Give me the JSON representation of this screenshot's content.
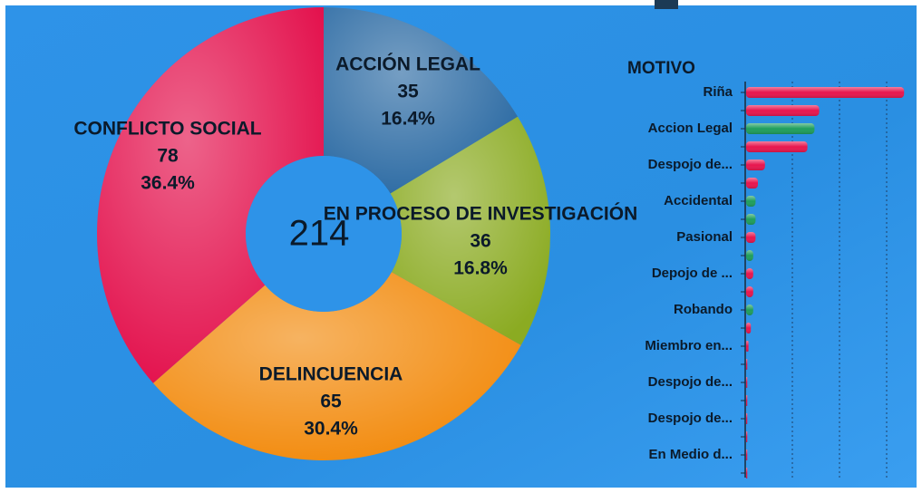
{
  "chart_data": [
    {
      "type": "donut",
      "categories": [
        "ACCIÓN LEGAL",
        "EN PROCESO DE INVESTIGACIÓN",
        "DELINCUENCIA",
        "CONFLICTO SOCIAL"
      ],
      "values": [
        35,
        36,
        65,
        78
      ],
      "percent_labels": [
        "16.4%",
        "16.8%",
        "30.4%",
        "36.4%"
      ],
      "colors": [
        "#2b6aa3",
        "#8bab22",
        "#f28a0c",
        "#e3104c"
      ],
      "total": 214
    },
    {
      "type": "hbar",
      "title": "MOTIVO",
      "categories": [
        "Riña",
        null,
        "Accion Legal",
        null,
        "Despojo de...",
        null,
        "Accidental",
        null,
        "Pasional",
        null,
        "Depojo de ...",
        null,
        "Robando",
        null,
        "Miembro en...",
        null,
        "Despojo de...",
        null,
        "Despojo de...",
        null,
        "En Medio d...",
        null
      ],
      "values": [
        67,
        31,
        29,
        26,
        8,
        5,
        4,
        4,
        4,
        3,
        3,
        3,
        3,
        2,
        1,
        0.5,
        0.5,
        0.5,
        0.5,
        0.5,
        0.5,
        0.5
      ],
      "colors": [
        "#e8164e",
        "#e8164e",
        "#1f9e5c",
        "#e8164e",
        "#e8164e",
        "#e8164e",
        "#1f9e5c",
        "#1f9e5c",
        "#e8164e",
        "#1f9e5c",
        "#e8164e",
        "#e8164e",
        "#1f9e5c",
        "#e8164e",
        "#e8164e",
        "#e8164e",
        "#e8164e",
        "#e8164e",
        "#e8164e",
        "#e8164e",
        "#e8164e",
        "#e8164e"
      ],
      "xlim": [
        0,
        70
      ],
      "xticks": [
        0,
        20,
        40,
        60
      ],
      "grid": true
    }
  ]
}
